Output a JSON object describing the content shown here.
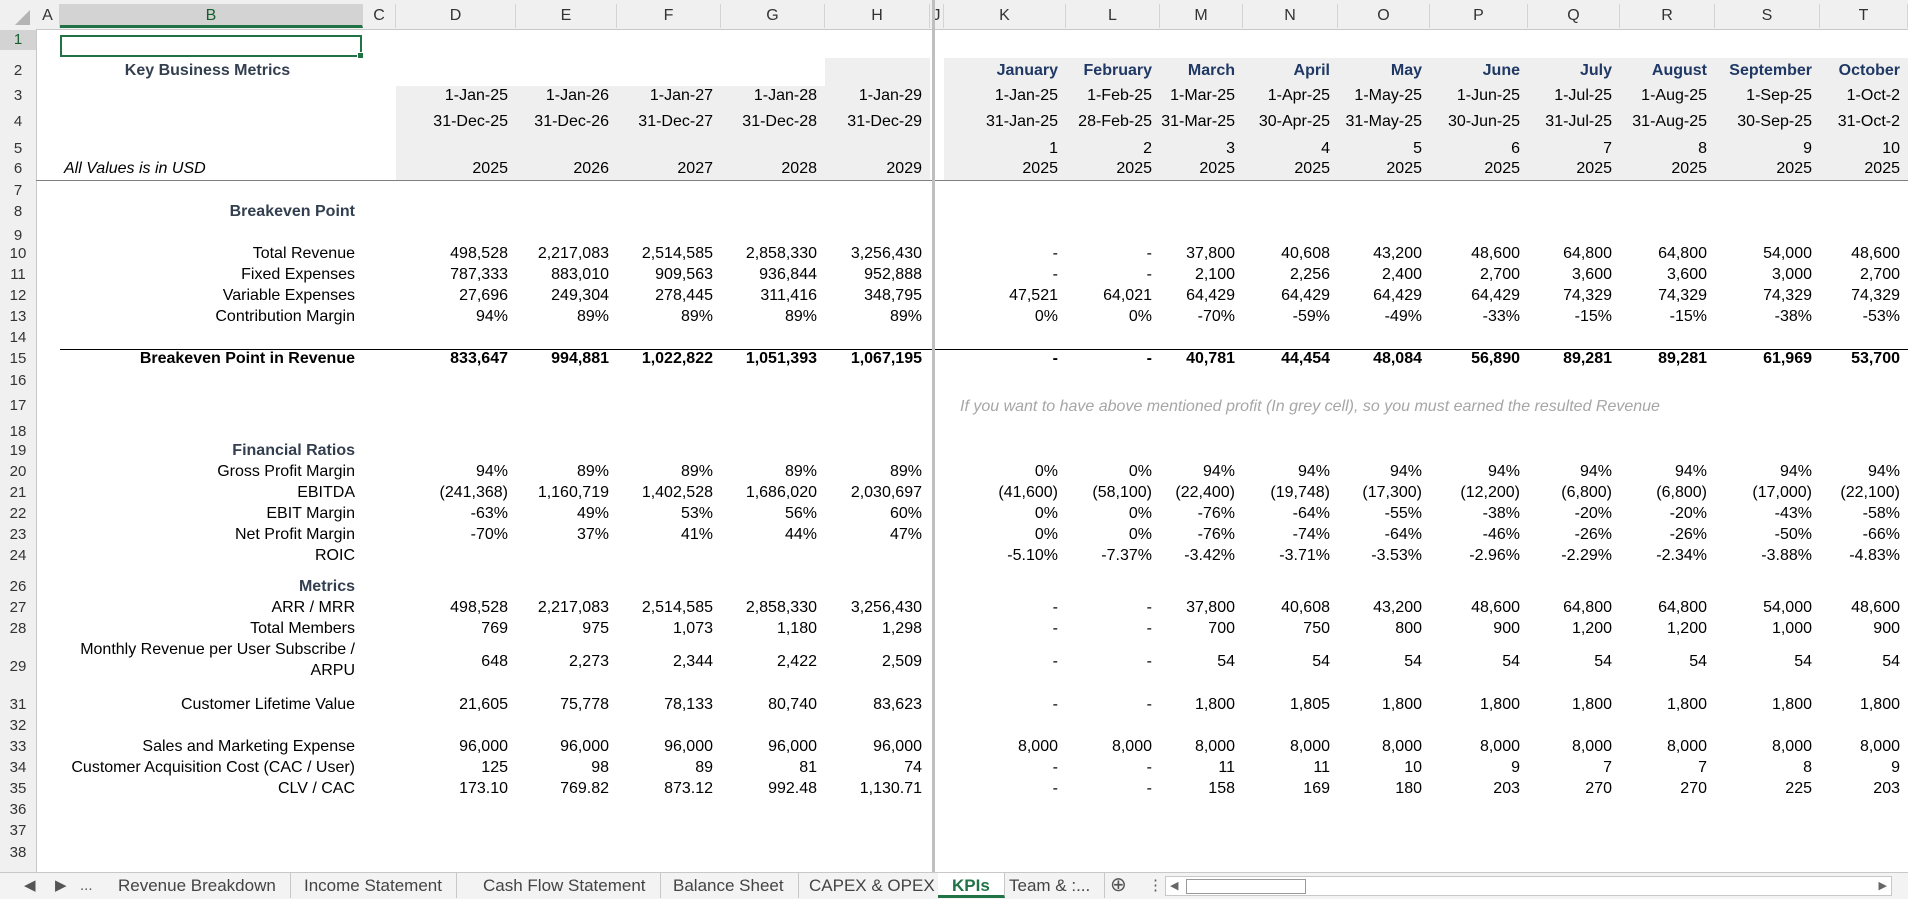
{
  "columns": [
    "A",
    "B",
    "C",
    "D",
    "E",
    "F",
    "G",
    "H",
    "J",
    "K",
    "L",
    "M",
    "N",
    "O",
    "P",
    "Q",
    "R",
    "S",
    "T"
  ],
  "selected_column": "B",
  "row_numbers": [
    "1",
    "2",
    "3",
    "4",
    "5",
    "6",
    "7",
    "8",
    "9",
    "10",
    "11",
    "12",
    "13",
    "14",
    "15",
    "16",
    "17",
    "18",
    "19",
    "20",
    "21",
    "22",
    "23",
    "24",
    "26",
    "27",
    "28",
    "29",
    "31",
    "32",
    "33",
    "34",
    "35",
    "36",
    "37",
    "38"
  ],
  "selected_row": "1",
  "header": {
    "title": "Key Business Metrics",
    "units_note": "All Values is in USD",
    "annual_start": [
      "1-Jan-25",
      "1-Jan-26",
      "1-Jan-27",
      "1-Jan-28",
      "1-Jan-29"
    ],
    "annual_end": [
      "31-Dec-25",
      "31-Dec-26",
      "31-Dec-27",
      "31-Dec-28",
      "31-Dec-29"
    ],
    "annual_year": [
      "2025",
      "2026",
      "2027",
      "2028",
      "2029"
    ],
    "months": [
      "January",
      "February",
      "March",
      "April",
      "May",
      "June",
      "July",
      "August",
      "September",
      "October"
    ],
    "month_start": [
      "1-Jan-25",
      "1-Feb-25",
      "1-Mar-25",
      "1-Apr-25",
      "1-May-25",
      "1-Jun-25",
      "1-Jul-25",
      "1-Aug-25",
      "1-Sep-25",
      "1-Oct-2"
    ],
    "month_end": [
      "31-Jan-25",
      "28-Feb-25",
      "31-Mar-25",
      "30-Apr-25",
      "31-May-25",
      "30-Jun-25",
      "31-Jul-25",
      "31-Aug-25",
      "30-Sep-25",
      "31-Oct-2"
    ],
    "month_index": [
      "1",
      "2",
      "3",
      "4",
      "5",
      "6",
      "7",
      "8",
      "9",
      "10"
    ],
    "month_year": [
      "2025",
      "2025",
      "2025",
      "2025",
      "2025",
      "2025",
      "2025",
      "2025",
      "2025",
      "2025"
    ]
  },
  "sections": {
    "breakeven": "Breakeven Point",
    "financial_ratios": "Financial Ratios",
    "metrics": "Metrics"
  },
  "note": "If you want to have above mentioned profit (In grey cell), so you must earned the resulted Revenue",
  "rows": [
    {
      "label": "Total Revenue",
      "annual": [
        "498,528",
        "2,217,083",
        "2,514,585",
        "2,858,330",
        "3,256,430"
      ],
      "monthly": [
        "-",
        "-",
        "37,800",
        "40,608",
        "43,200",
        "48,600",
        "64,800",
        "64,800",
        "54,000",
        "48,600"
      ]
    },
    {
      "label": "Fixed Expenses",
      "annual": [
        "787,333",
        "883,010",
        "909,563",
        "936,844",
        "952,888"
      ],
      "monthly": [
        "-",
        "-",
        "2,100",
        "2,256",
        "2,400",
        "2,700",
        "3,600",
        "3,600",
        "3,000",
        "2,700"
      ]
    },
    {
      "label": "Variable Expenses",
      "annual": [
        "27,696",
        "249,304",
        "278,445",
        "311,416",
        "348,795"
      ],
      "monthly": [
        "47,521",
        "64,021",
        "64,429",
        "64,429",
        "64,429",
        "64,429",
        "74,329",
        "74,329",
        "74,329",
        "74,329"
      ]
    },
    {
      "label": "Contribution Margin",
      "annual": [
        "94%",
        "89%",
        "89%",
        "89%",
        "89%"
      ],
      "monthly": [
        "0%",
        "0%",
        "-70%",
        "-59%",
        "-49%",
        "-33%",
        "-15%",
        "-15%",
        "-38%",
        "-53%"
      ]
    },
    {
      "label": "Breakeven Point in Revenue",
      "annual": [
        "833,647",
        "994,881",
        "1,022,822",
        "1,051,393",
        "1,067,195"
      ],
      "monthly": [
        "-",
        "-",
        "40,781",
        "44,454",
        "48,084",
        "56,890",
        "89,281",
        "89,281",
        "61,969",
        "53,700"
      ]
    },
    {
      "label": "Gross Profit Margin",
      "annual": [
        "94%",
        "89%",
        "89%",
        "89%",
        "89%"
      ],
      "monthly": [
        "0%",
        "0%",
        "94%",
        "94%",
        "94%",
        "94%",
        "94%",
        "94%",
        "94%",
        "94%"
      ]
    },
    {
      "label": "EBITDA",
      "annual": [
        "(241,368)",
        "1,160,719",
        "1,402,528",
        "1,686,020",
        "2,030,697"
      ],
      "monthly": [
        "(41,600)",
        "(58,100)",
        "(22,400)",
        "(19,748)",
        "(17,300)",
        "(12,200)",
        "(6,800)",
        "(6,800)",
        "(17,000)",
        "(22,100)"
      ]
    },
    {
      "label": "EBIT Margin",
      "annual": [
        "-63%",
        "49%",
        "53%",
        "56%",
        "60%"
      ],
      "monthly": [
        "0%",
        "0%",
        "-76%",
        "-64%",
        "-55%",
        "-38%",
        "-20%",
        "-20%",
        "-43%",
        "-58%"
      ]
    },
    {
      "label": "Net Profit Margin",
      "annual": [
        "-70%",
        "37%",
        "41%",
        "44%",
        "47%"
      ],
      "monthly": [
        "0%",
        "0%",
        "-76%",
        "-74%",
        "-64%",
        "-46%",
        "-26%",
        "-26%",
        "-50%",
        "-66%"
      ]
    },
    {
      "label": "ROIC",
      "annual": [
        "",
        "",
        "",
        "",
        ""
      ],
      "monthly": [
        "-5.10%",
        "-7.37%",
        "-3.42%",
        "-3.71%",
        "-3.53%",
        "-2.96%",
        "-2.29%",
        "-2.34%",
        "-3.88%",
        "-4.83%"
      ]
    },
    {
      "label": "ARR / MRR",
      "annual": [
        "498,528",
        "2,217,083",
        "2,514,585",
        "2,858,330",
        "3,256,430"
      ],
      "monthly": [
        "-",
        "-",
        "37,800",
        "40,608",
        "43,200",
        "48,600",
        "64,800",
        "64,800",
        "54,000",
        "48,600"
      ]
    },
    {
      "label": "Total Members",
      "annual": [
        "769",
        "975",
        "1,073",
        "1,180",
        "1,298"
      ],
      "monthly": [
        "-",
        "-",
        "700",
        "750",
        "800",
        "900",
        "1,200",
        "1,200",
        "1,000",
        "900"
      ]
    },
    {
      "label": "Monthly Revenue per User  Subscribe /",
      "label2": "ARPU",
      "annual": [
        "648",
        "2,273",
        "2,344",
        "2,422",
        "2,509"
      ],
      "monthly": [
        "-",
        "-",
        "54",
        "54",
        "54",
        "54",
        "54",
        "54",
        "54",
        "54"
      ]
    },
    {
      "label": "Customer Lifetime Value",
      "annual": [
        "21,605",
        "75,778",
        "78,133",
        "80,740",
        "83,623"
      ],
      "monthly": [
        "-",
        "-",
        "1,800",
        "1,805",
        "1,800",
        "1,800",
        "1,800",
        "1,800",
        "1,800",
        "1,800"
      ]
    },
    {
      "label": "Sales and Marketing Expense",
      "annual": [
        "96,000",
        "96,000",
        "96,000",
        "96,000",
        "96,000"
      ],
      "monthly": [
        "8,000",
        "8,000",
        "8,000",
        "8,000",
        "8,000",
        "8,000",
        "8,000",
        "8,000",
        "8,000",
        "8,000"
      ]
    },
    {
      "label": "Customer Acquisition  Cost (CAC / User)",
      "annual": [
        "125",
        "98",
        "89",
        "81",
        "74"
      ],
      "monthly": [
        "-",
        "-",
        "11",
        "11",
        "10",
        "9",
        "7",
        "7",
        "8",
        "9"
      ]
    },
    {
      "label": "CLV / CAC",
      "annual": [
        "173.10",
        "769.82",
        "873.12",
        "992.48",
        "1,130.71"
      ],
      "monthly": [
        "-",
        "-",
        "158",
        "169",
        "180",
        "203",
        "270",
        "270",
        "225",
        "203"
      ]
    }
  ],
  "sheet_tabs": [
    "Revenue Breakdown",
    "Income Statement",
    "Cash Flow Statement",
    "Balance Sheet",
    "CAPEX & OPEX",
    "KPIs",
    "Team & :..."
  ],
  "active_tab": "KPIs",
  "nav": {
    "prev": "◀",
    "next": "▶",
    "more": "...",
    "add": "⊕",
    "options": "⋮"
  }
}
